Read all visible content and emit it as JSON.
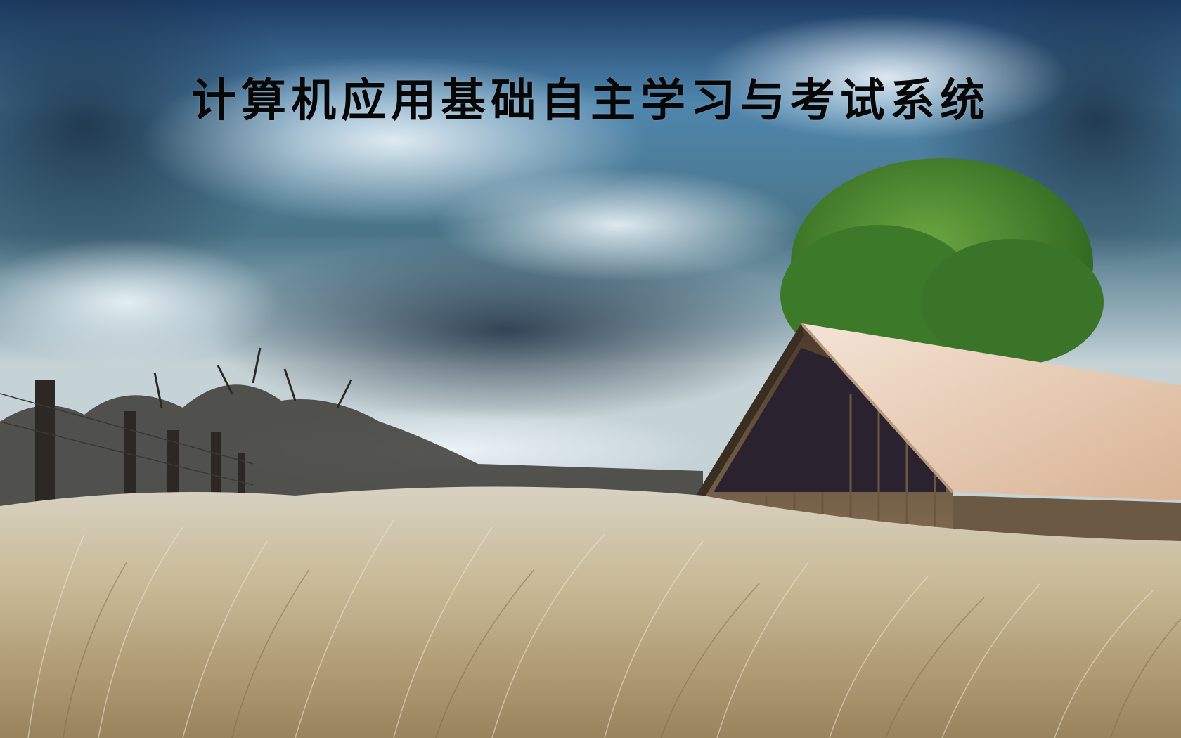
{
  "app": {
    "title": "计算机应用基础自主学习与考试系统"
  },
  "background": {
    "scene": "landscape-barn-wallpaper",
    "colors": {
      "sky_dark": "#1f3550",
      "sky_mid": "#4d7a96",
      "sky_light": "#cfe3ee",
      "grass": "#c9b892",
      "tree": "#3f7f2a",
      "roof": "#e8cbb2",
      "barn_wood": "#5a4632"
    }
  }
}
